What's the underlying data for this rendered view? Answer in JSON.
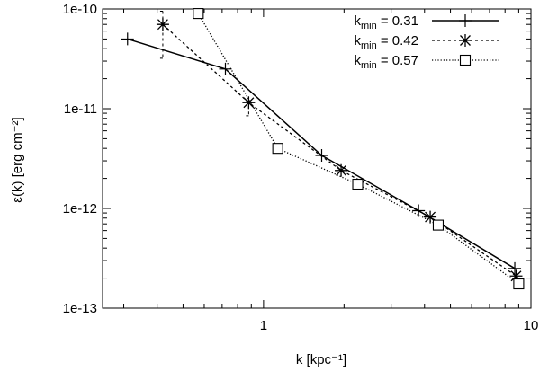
{
  "chart_data": {
    "type": "line",
    "x_scale": "log",
    "y_scale": "log",
    "xlim": [
      0.25,
      10
    ],
    "ylim": [
      1e-13,
      1e-10
    ],
    "xlabel": "k [kpc⁻¹]",
    "ylabel": "ε(k)  [erg cm⁻²]",
    "x_ticks": [
      {
        "value": 1,
        "label": "1"
      },
      {
        "value": 10,
        "label": "10"
      }
    ],
    "y_ticks": [
      {
        "value": 1e-13,
        "label": "1e-13"
      },
      {
        "value": 1e-12,
        "label": "1e-12"
      },
      {
        "value": 1e-11,
        "label": "1e-11"
      },
      {
        "value": 1e-10,
        "label": "1e-10"
      }
    ],
    "grid": false,
    "legend_position": "top-right",
    "series": [
      {
        "name": "k_min = 0.31",
        "legend_k": "k",
        "legend_sub": "min",
        "legend_val": " = 0.31",
        "line_style": "solid",
        "marker": "plus",
        "color": "#000000",
        "x": [
          0.31,
          0.72,
          1.65,
          3.8,
          8.7
        ],
        "y": [
          5e-11,
          2.5e-11,
          3.4e-12,
          9.5e-13,
          2.5e-13
        ]
      },
      {
        "name": "k_min = 0.42",
        "legend_k": "k",
        "legend_sub": "min",
        "legend_val": " = 0.42",
        "line_style": "dashed",
        "marker": "star",
        "color": "#000000",
        "x": [
          0.42,
          0.88,
          1.95,
          4.2,
          8.8
        ],
        "y": [
          7e-11,
          1.15e-11,
          2.4e-12,
          8.2e-13,
          2.1e-13
        ],
        "error_bars": [
          {
            "x": 0.42,
            "low": 3.2e-11,
            "high": 9.5e-11
          },
          {
            "x": 0.88,
            "low": 8.5e-12,
            "high": 1.2e-11
          }
        ]
      },
      {
        "name": "k_min = 0.57",
        "legend_k": "k",
        "legend_sub": "min",
        "legend_val": " = 0.57",
        "line_style": "dotted",
        "marker": "square",
        "color": "#000000",
        "x": [
          0.57,
          1.13,
          2.25,
          4.5,
          9.0
        ],
        "y": [
          9e-11,
          4e-12,
          1.75e-12,
          6.8e-13,
          1.75e-13
        ]
      }
    ]
  }
}
